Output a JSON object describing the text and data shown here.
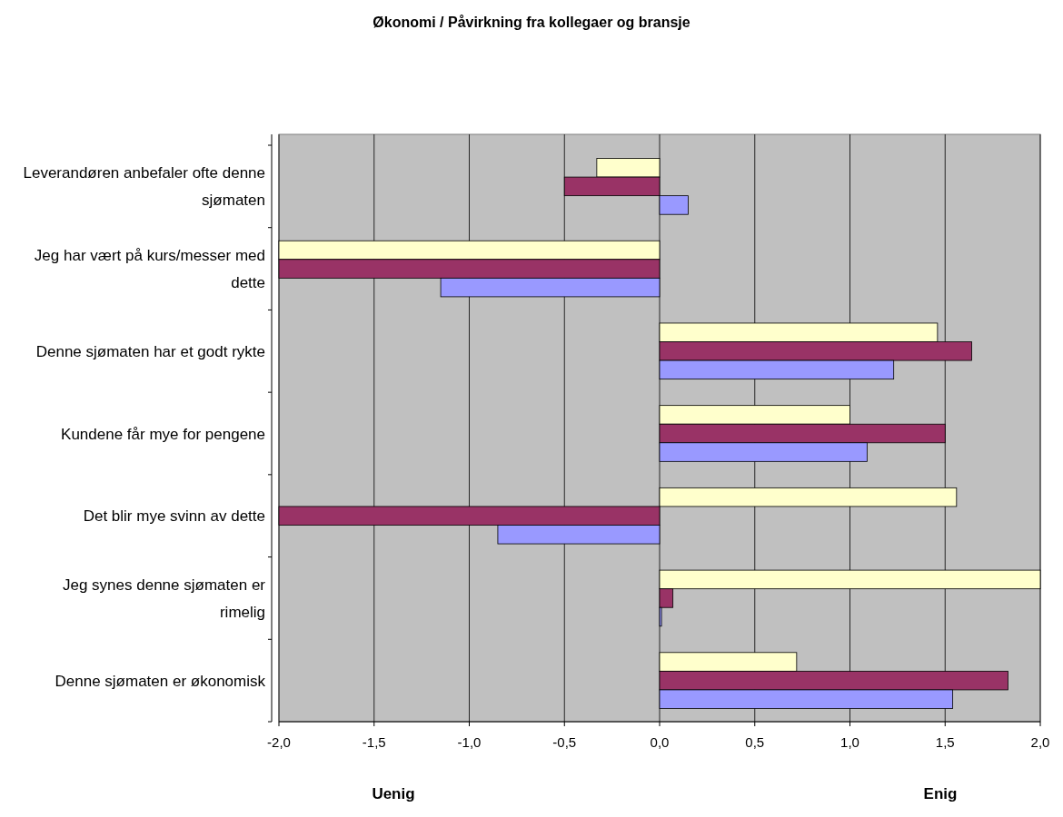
{
  "chart_data": {
    "type": "bar",
    "orientation": "horizontal",
    "title": "Økonomi / Påvirkning fra kollegaer og bransje",
    "categories": [
      "Leverandøren anbefaler ofte denne sjømaten",
      "Jeg har vært på kurs/messer med dette",
      "Denne sjømaten har et godt rykte",
      "Kundene får mye for pengene",
      "Det blir mye svinn av dette",
      "Jeg synes denne sjømaten er rimelig",
      "Denne sjømaten er økonomisk"
    ],
    "series": [
      {
        "color": "#ffffcc",
        "values": [
          -0.33,
          -2.0,
          1.46,
          1.0,
          1.56,
          2.0,
          0.72
        ]
      },
      {
        "color": "#993366",
        "values": [
          -0.5,
          -2.0,
          1.64,
          1.5,
          -2.0,
          0.07,
          1.83
        ]
      },
      {
        "color": "#9999ff",
        "values": [
          0.15,
          -1.15,
          1.23,
          1.09,
          -0.85,
          0.01,
          1.54
        ]
      }
    ],
    "xlim": [
      -2,
      2
    ],
    "xticks": [
      {
        "value": -2,
        "label": "-2,0"
      },
      {
        "value": -1.5,
        "label": "-1,5"
      },
      {
        "value": -1,
        "label": "-1,0"
      },
      {
        "value": -0.5,
        "label": "-0,5"
      },
      {
        "value": 0,
        "label": "0,0"
      },
      {
        "value": 0.5,
        "label": "0,5"
      },
      {
        "value": 1,
        "label": "1,0"
      },
      {
        "value": 1.5,
        "label": "1,5"
      },
      {
        "value": 2,
        "label": "2,0"
      }
    ],
    "grid": "x",
    "annotations": [
      "Uenig",
      "Enig"
    ]
  }
}
